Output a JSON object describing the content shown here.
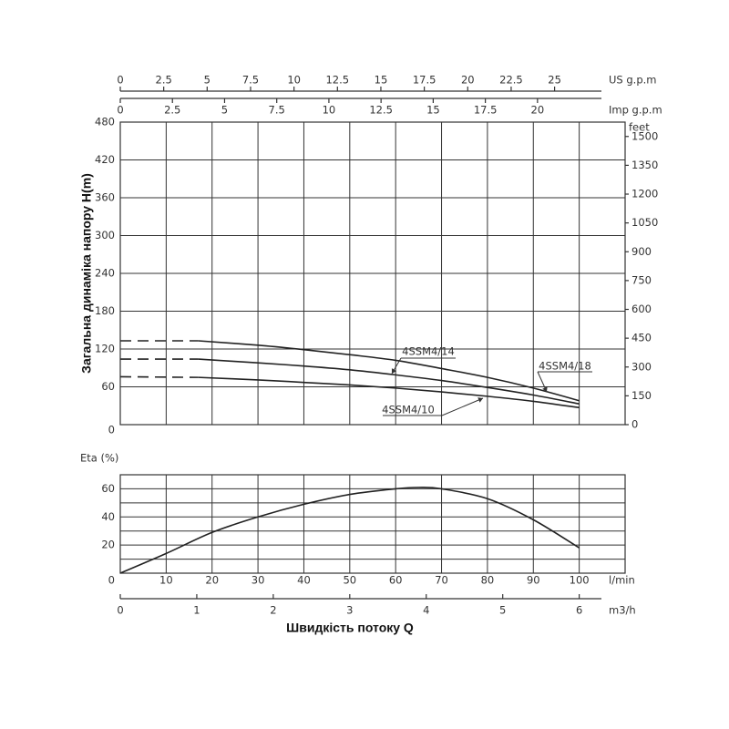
{
  "chart_data": [
    {
      "type": "line",
      "y_label": "Загальна динаміка напору H(m)",
      "xlim": [
        0,
        110
      ],
      "xticks": [
        10,
        20,
        30,
        40,
        50,
        60,
        70,
        80,
        90,
        100
      ],
      "ylim": [
        0,
        480
      ],
      "yticks": [
        0,
        60,
        120,
        180,
        240,
        300,
        360,
        420,
        480
      ],
      "y2_label": "feet",
      "y2lim": [
        0,
        1574.8
      ],
      "y2ticks": [
        0,
        150,
        300,
        450,
        600,
        750,
        900,
        1050,
        1200,
        1350,
        1500
      ],
      "grid": true,
      "top_axes": [
        {
          "label": "US g.p.m",
          "xlim": [
            0,
            29.06
          ],
          "xticks": [
            0,
            2.5,
            5,
            7.5,
            10,
            12.5,
            15,
            17.5,
            20,
            22.5,
            25
          ]
        },
        {
          "label": "Imp g.p.m",
          "xlim": [
            0,
            24.2
          ],
          "xticks": [
            0,
            2.5,
            5,
            7.5,
            10,
            12.5,
            15,
            17.5,
            20
          ]
        }
      ],
      "series": [
        {
          "name": "4SSM4/18",
          "color": "#222222",
          "x": [
            0,
            17,
            30,
            40,
            50,
            60,
            70,
            80,
            90,
            100
          ],
          "values": [
            133,
            133,
            126,
            119,
            111,
            102,
            89,
            75,
            58,
            38
          ]
        },
        {
          "name": "4SSM4/14",
          "color": "#222222",
          "x": [
            0,
            17,
            30,
            40,
            50,
            60,
            70,
            80,
            90,
            100
          ],
          "values": [
            104,
            104,
            98,
            93,
            87,
            79,
            70,
            59,
            47,
            33
          ]
        },
        {
          "name": "4SSM4/10",
          "color": "#222222",
          "x": [
            0,
            17,
            30,
            40,
            50,
            60,
            70,
            80,
            90,
            100
          ],
          "values": [
            76,
            75,
            71,
            67,
            63,
            58,
            52,
            45,
            37,
            27
          ]
        }
      ]
    },
    {
      "type": "line",
      "y_label": "Eta (%)",
      "x_label": "Швидкість потоку Q",
      "x_unit": "l/min",
      "xlim": [
        0,
        110
      ],
      "xticks": [
        10,
        20,
        30,
        40,
        50,
        60,
        70,
        80,
        90,
        100
      ],
      "ylim": [
        0,
        70
      ],
      "yticks": [
        0,
        20,
        40,
        60
      ],
      "minor_yticks": [
        10,
        30,
        50,
        70
      ],
      "grid": true,
      "color": "#222222",
      "x": [
        0,
        10,
        20,
        30,
        40,
        50,
        60,
        65,
        70,
        80,
        90,
        100
      ],
      "values": [
        0,
        14,
        29,
        40,
        49,
        56,
        60,
        61,
        60,
        53,
        38,
        18
      ],
      "bottom_axis": {
        "label": "m3/h",
        "xlim": [
          0,
          6.6
        ],
        "xticks": [
          0,
          1,
          2,
          3,
          4,
          5,
          6
        ]
      }
    }
  ]
}
